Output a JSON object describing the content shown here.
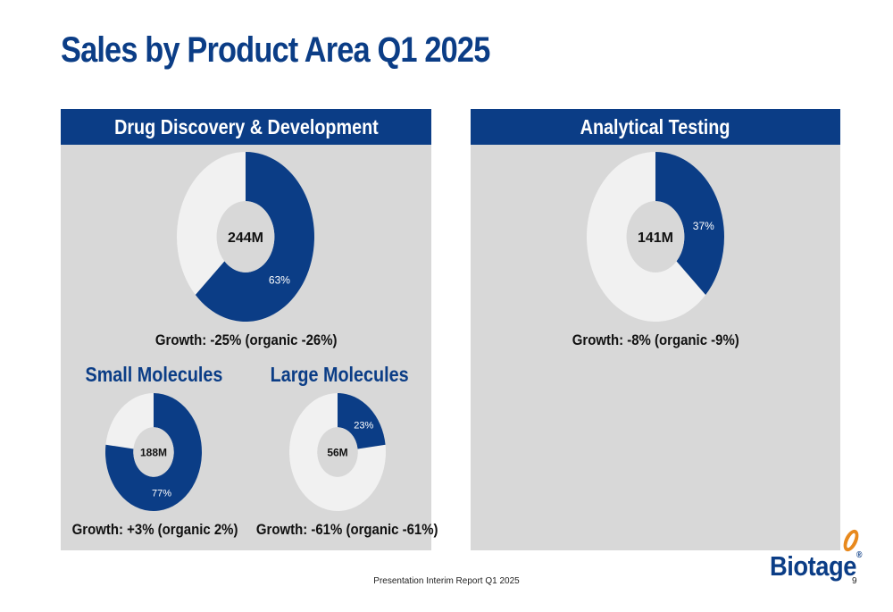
{
  "slide": {
    "title": "Sales by Product Area Q1 2025",
    "footer": "Presentation Interim Report Q1 2025",
    "page_number": "9",
    "logo_text": "Biotage",
    "logo_mark": "®"
  },
  "colors": {
    "brand_blue": "#0b3d86",
    "panel_gray": "#d8d8d8",
    "ring_light": "#f1f1f1",
    "logo_orange": "#e8891d"
  },
  "panels": {
    "ddd": {
      "header": "Drug Discovery & Development",
      "growth": "Growth: -25% (organic -26%)"
    },
    "at": {
      "header": "Analytical Testing",
      "growth": "Growth: -8% (organic -9%)"
    },
    "small": {
      "title": "Small Molecules",
      "growth": "Growth: +3% (organic 2%)"
    },
    "large": {
      "title": "Large Molecules",
      "growth": "Growth: -61% (organic -61%)"
    }
  },
  "chart_data": [
    {
      "id": "ddd",
      "type": "pie",
      "donut": true,
      "center_label": "244M",
      "share_label": "63%",
      "share": 63
    },
    {
      "id": "at",
      "type": "pie",
      "donut": true,
      "center_label": "141M",
      "share_label": "37%",
      "share": 37
    },
    {
      "id": "small",
      "type": "pie",
      "donut": true,
      "center_label": "188M",
      "share_label": "77%",
      "share": 77
    },
    {
      "id": "large",
      "type": "pie",
      "donut": true,
      "center_label": "56M",
      "share_label": "23%",
      "share": 23
    }
  ]
}
